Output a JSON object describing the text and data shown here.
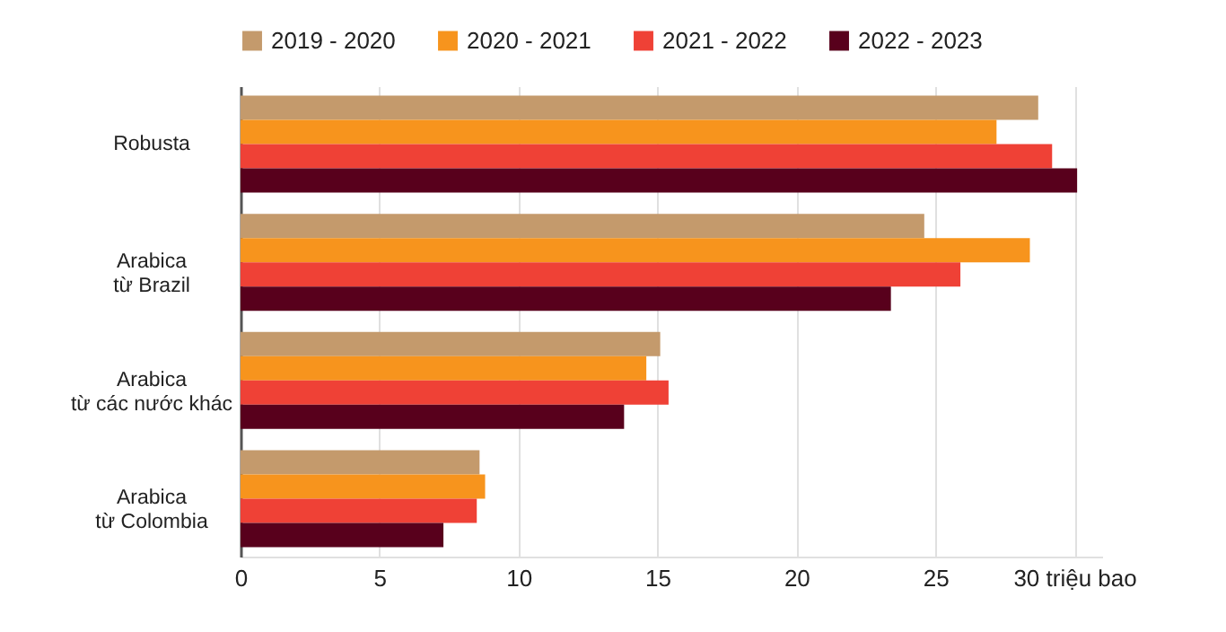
{
  "chart_data": {
    "type": "bar",
    "orientation": "horizontal",
    "categories": [
      "Robusta",
      "Arabica\ntừ Brazil",
      "Arabica\ntừ các nước khác",
      "Arabica\ntừ Colombia"
    ],
    "series": [
      {
        "name": "2019 - 2020",
        "color": "#c49a6c",
        "values": [
          28.7,
          24.6,
          15.1,
          8.6
        ]
      },
      {
        "name": "2020 - 2021",
        "color": "#f7941d",
        "values": [
          27.2,
          28.4,
          14.6,
          8.8
        ]
      },
      {
        "name": "2021 - 2022",
        "color": "#ef4136",
        "values": [
          29.2,
          25.9,
          15.4,
          8.5
        ]
      },
      {
        "name": "2022 - 2023",
        "color": "#58001c",
        "values": [
          30.1,
          23.4,
          13.8,
          7.3
        ]
      }
    ],
    "xlim": [
      0,
      31
    ],
    "xticks": [
      0,
      5,
      10,
      15,
      20,
      25,
      {
        "value": 30,
        "label": "30 triệu bao"
      }
    ],
    "grid": "x",
    "legend": "top"
  }
}
